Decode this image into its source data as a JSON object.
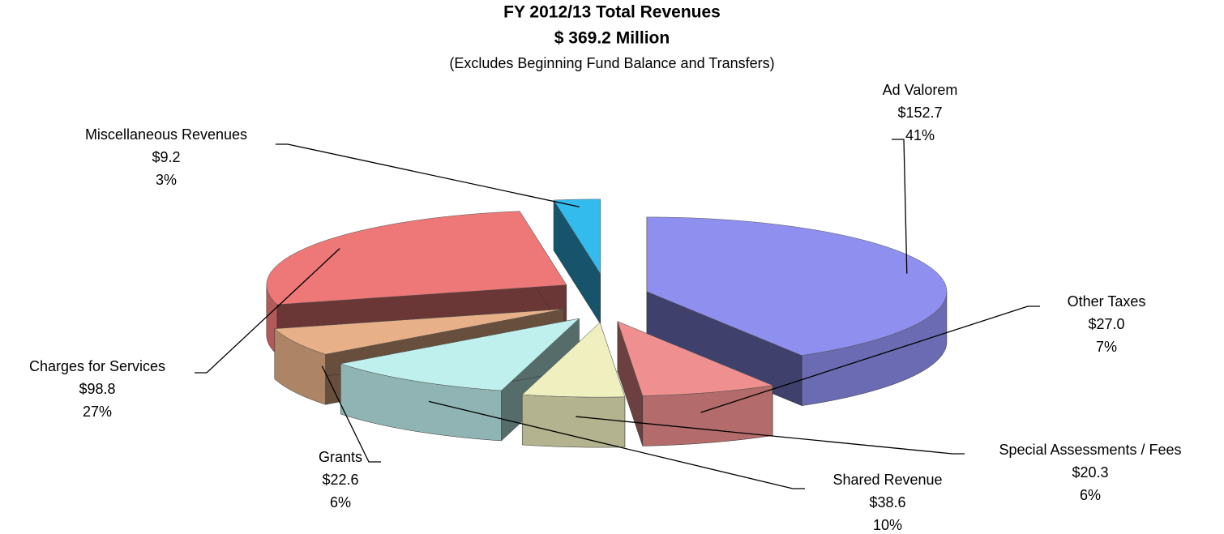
{
  "chart_data": {
    "type": "pie",
    "title": "FY 2012/13 Total Revenues",
    "subtitle": "$ 369.2 Million",
    "note": "(Excludes Beginning Fund Balance and Transfers)",
    "categories": [
      "Ad Valorem",
      "Other Taxes",
      "Special Assessments / Fees",
      "Shared Revenue",
      "Grants",
      "Charges for Services",
      "Miscellaneous Revenues"
    ],
    "values": [
      152.7,
      27.0,
      20.3,
      38.6,
      22.6,
      98.8,
      9.2
    ],
    "value_labels": [
      "$152.7",
      "$27.0",
      "$20.3",
      "$38.6",
      "$22.6",
      "$98.8",
      "$9.2"
    ],
    "percents": [
      41,
      7,
      6,
      10,
      6,
      27,
      3
    ],
    "percent_labels": [
      "41%",
      "7%",
      "6%",
      "10%",
      "6%",
      "27%",
      "3%"
    ],
    "colors": [
      "#8f8fef",
      "#ef8f8f",
      "#efefbf",
      "#bff0ee",
      "#e8b088",
      "#ee7777",
      "#33bbee"
    ]
  }
}
